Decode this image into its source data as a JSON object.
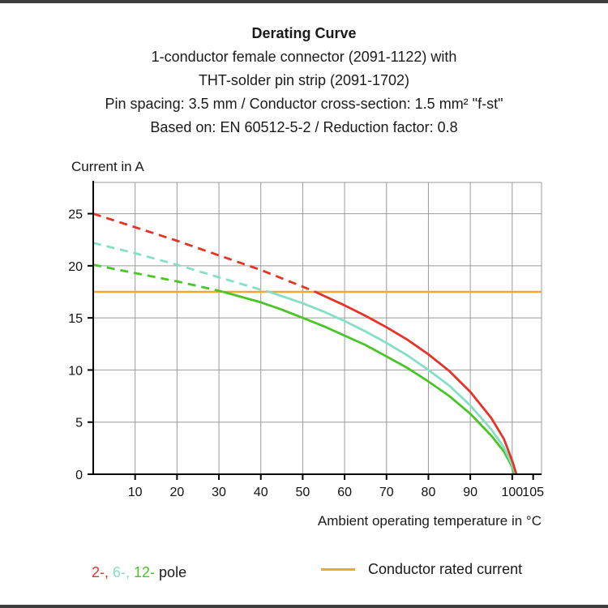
{
  "header": {
    "title": "Derating Curve",
    "lines": [
      "1-conductor female connector (2091-1122) with",
      "THT-solder pin strip (2091-1702)",
      "Pin spacing: 3.5 mm / Conductor cross-section: 1.5 mm² \"f-st\"",
      "Based on: EN 60512-5-2 / Reduction factor: 0.8"
    ]
  },
  "chart_data": {
    "type": "line",
    "title": "Derating Curve",
    "ylabel": "Current in A",
    "xlabel": "Ambient operating temperature in °C",
    "xlim": [
      0,
      107
    ],
    "ylim": [
      0,
      28
    ],
    "xticks": [
      10,
      20,
      30,
      40,
      50,
      60,
      70,
      80,
      90,
      100,
      105
    ],
    "yticks": [
      0,
      5,
      10,
      15,
      20,
      25
    ],
    "grid": true,
    "rated_current": {
      "value": 17.5,
      "label": "Conductor rated current",
      "color": "#f7a533"
    },
    "series": [
      {
        "name": "2-pole",
        "color": "#e63329",
        "dashed": [
          [
            0,
            25
          ],
          [
            10,
            23.7
          ],
          [
            20,
            22.4
          ],
          [
            30,
            21.0
          ],
          [
            40,
            19.6
          ],
          [
            50,
            18.0
          ],
          [
            53,
            17.5
          ]
        ],
        "solid": [
          [
            53,
            17.5
          ],
          [
            60,
            16.2
          ],
          [
            65,
            15.2
          ],
          [
            70,
            14.1
          ],
          [
            75,
            12.9
          ],
          [
            80,
            11.5
          ],
          [
            85,
            9.9
          ],
          [
            90,
            7.9
          ],
          [
            95,
            5.4
          ],
          [
            98,
            3.4
          ],
          [
            100,
            1.3
          ],
          [
            101,
            0
          ]
        ]
      },
      {
        "name": "6-pole",
        "color": "#85dfc6",
        "dashed": [
          [
            0,
            22.2
          ],
          [
            10,
            21.2
          ],
          [
            20,
            20.1
          ],
          [
            30,
            18.9
          ],
          [
            40,
            17.7
          ],
          [
            42,
            17.5
          ]
        ],
        "solid": [
          [
            42,
            17.5
          ],
          [
            50,
            16.4
          ],
          [
            55,
            15.6
          ],
          [
            60,
            14.7
          ],
          [
            65,
            13.7
          ],
          [
            70,
            12.6
          ],
          [
            75,
            11.4
          ],
          [
            80,
            10.0
          ],
          [
            85,
            8.5
          ],
          [
            90,
            6.6
          ],
          [
            95,
            4.3
          ],
          [
            98,
            2.6
          ],
          [
            100,
            0.9
          ],
          [
            100.8,
            0
          ]
        ]
      },
      {
        "name": "12-pole",
        "color": "#49c527",
        "dashed": [
          [
            0,
            20.1
          ],
          [
            10,
            19.3
          ],
          [
            20,
            18.5
          ],
          [
            30,
            17.6
          ],
          [
            31,
            17.5
          ]
        ],
        "solid": [
          [
            31,
            17.5
          ],
          [
            40,
            16.5
          ],
          [
            45,
            15.8
          ],
          [
            50,
            15.0
          ],
          [
            55,
            14.2
          ],
          [
            60,
            13.3
          ],
          [
            65,
            12.4
          ],
          [
            70,
            11.3
          ],
          [
            75,
            10.2
          ],
          [
            80,
            8.9
          ],
          [
            85,
            7.5
          ],
          [
            90,
            5.8
          ],
          [
            95,
            3.7
          ],
          [
            98,
            2.2
          ],
          [
            100,
            0.7
          ],
          [
            100.4,
            0
          ]
        ]
      }
    ]
  },
  "legend": {
    "poles": [
      {
        "label": "2-,",
        "color": "#e63329"
      },
      {
        "label": "6-,",
        "color": "#85dfc6"
      },
      {
        "label": "12-",
        "color": "#49c527"
      }
    ],
    "poles_suffix": "pole",
    "rated_label": "Conductor rated current"
  },
  "colors": {
    "red": "#e63329",
    "teal": "#85dfc6",
    "green": "#49c527",
    "orange": "#f7a533",
    "grid": "#9b9b9b",
    "axis": "#000000",
    "text": "#1a1a1a"
  }
}
